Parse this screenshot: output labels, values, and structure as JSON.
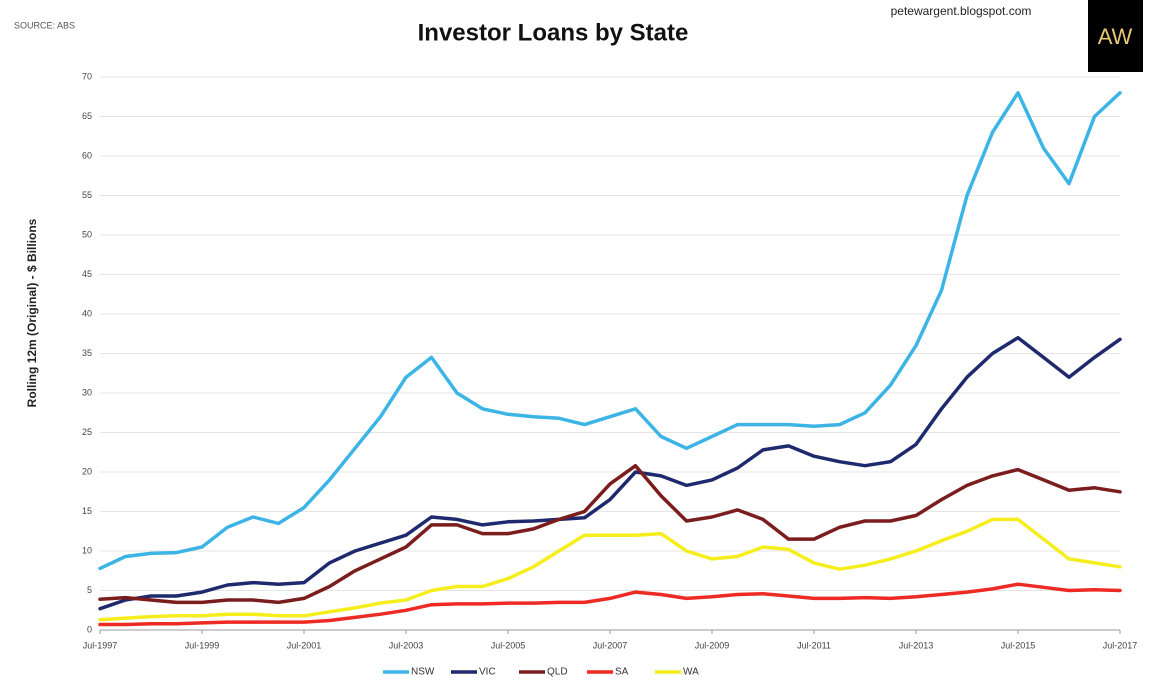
{
  "chart_data": {
    "type": "line",
    "title": "Investor Loans by State",
    "source": "SOURCE: ABS",
    "credit": "petewargent.blogspot.com",
    "logo": "AW",
    "y_label": "Rolling 12m (Original) - $ Billions",
    "x": [
      "1997-07",
      "1998-01",
      "1998-07",
      "1999-01",
      "1999-07",
      "2000-01",
      "2000-07",
      "2001-01",
      "2001-07",
      "2002-01",
      "2002-07",
      "2003-01",
      "2003-07",
      "2004-01",
      "2004-07",
      "2005-01",
      "2005-07",
      "2006-01",
      "2006-07",
      "2007-01",
      "2007-07",
      "2008-01",
      "2008-07",
      "2009-01",
      "2009-07",
      "2010-01",
      "2010-07",
      "2011-01",
      "2011-07",
      "2012-01",
      "2012-07",
      "2013-01",
      "2013-07",
      "2014-01",
      "2014-07",
      "2015-01",
      "2015-07",
      "2016-01",
      "2016-07",
      "2017-01",
      "2017-07"
    ],
    "xlim": [
      "1997-07",
      "2017-07"
    ],
    "xticks": [
      {
        "value": "1997-07",
        "label": "Jul-1997"
      },
      {
        "value": "1999-07",
        "label": "Jul-1999"
      },
      {
        "value": "2001-07",
        "label": "Jul-2001"
      },
      {
        "value": "2003-07",
        "label": "Jul-2003"
      },
      {
        "value": "2005-07",
        "label": "Jul-2005"
      },
      {
        "value": "2007-07",
        "label": "Jul-2007"
      },
      {
        "value": "2009-07",
        "label": "Jul-2009"
      },
      {
        "value": "2011-07",
        "label": "Jul-2011"
      },
      {
        "value": "2013-07",
        "label": "Jul-2013"
      },
      {
        "value": "2015-07",
        "label": "Jul-2015"
      },
      {
        "value": "2017-07",
        "label": "Jul-2017"
      }
    ],
    "ylim": [
      0,
      70
    ],
    "yticks": [
      0,
      5,
      10,
      15,
      20,
      25,
      30,
      35,
      40,
      45,
      50,
      55,
      60,
      65,
      70
    ],
    "grid": true,
    "legend": "bottom",
    "series": [
      {
        "name": "NSW",
        "color": "#3cb4e5",
        "values": [
          7.8,
          9.3,
          9.7,
          9.8,
          10.5,
          13,
          14.3,
          13.5,
          15.5,
          19,
          23,
          27,
          32,
          34.5,
          30,
          28,
          27.3,
          27,
          26.8,
          26,
          27,
          28,
          24.5,
          23,
          24.5,
          26,
          26,
          26,
          25.8,
          26,
          27.5,
          31,
          36,
          43,
          55,
          63,
          68,
          61,
          56.5,
          65,
          68
        ]
      },
      {
        "name": "VIC",
        "color": "#1f2a6e",
        "values": [
          2.7,
          3.8,
          4.3,
          4.3,
          4.8,
          5.7,
          6,
          5.8,
          6,
          8.5,
          10,
          11,
          12,
          14.3,
          14,
          13.3,
          13.7,
          13.8,
          14,
          14.2,
          16.5,
          20,
          19.5,
          18.3,
          19,
          20.5,
          22.8,
          23.3,
          22,
          21.3,
          20.8,
          21.3,
          23.5,
          28,
          32,
          35,
          37,
          34.5,
          32,
          34.5,
          36.8
        ]
      },
      {
        "name": "QLD",
        "color": "#7b1d1d",
        "values": [
          3.9,
          4.1,
          3.8,
          3.5,
          3.5,
          3.8,
          3.8,
          3.5,
          4,
          5.5,
          7.5,
          9,
          10.5,
          13.3,
          13.3,
          12.2,
          12.2,
          12.8,
          14,
          15,
          18.5,
          20.8,
          17,
          13.8,
          14.3,
          15.2,
          14,
          11.5,
          11.5,
          13,
          13.8,
          13.8,
          14.5,
          16.5,
          18.3,
          19.5,
          20.3,
          19,
          17.7,
          18,
          17.5
        ]
      },
      {
        "name": "SA",
        "color": "#ee2a24",
        "values": [
          0.7,
          0.7,
          0.8,
          0.8,
          0.9,
          1,
          1,
          1,
          1,
          1.2,
          1.6,
          2,
          2.5,
          3.2,
          3.3,
          3.3,
          3.4,
          3.4,
          3.5,
          3.5,
          4,
          4.8,
          4.5,
          4,
          4.2,
          4.5,
          4.6,
          4.3,
          4,
          4,
          4.1,
          4,
          4.2,
          4.5,
          4.8,
          5.2,
          5.8,
          5.4,
          5,
          5.1,
          5
        ]
      },
      {
        "name": "WA",
        "color": "#f6ee1c",
        "values": [
          1.3,
          1.5,
          1.7,
          1.8,
          1.8,
          2,
          2,
          1.8,
          1.8,
          2.3,
          2.8,
          3.4,
          3.8,
          5,
          5.5,
          5.5,
          6.5,
          8,
          10,
          12,
          12,
          12,
          12.2,
          10,
          9,
          9.3,
          10.5,
          10.2,
          8.5,
          7.7,
          8.2,
          9,
          10,
          11.3,
          12.5,
          14,
          14,
          11.5,
          9,
          8.5,
          8
        ]
      }
    ]
  }
}
